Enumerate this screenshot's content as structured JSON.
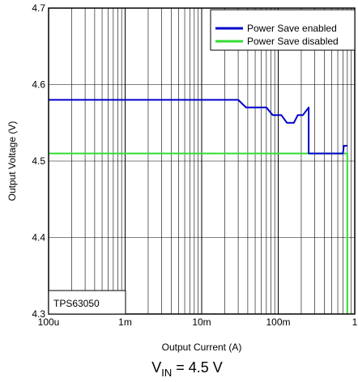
{
  "chart_data": {
    "type": "line",
    "xscale": "log",
    "xlabel": "Output Current (A)",
    "ylabel": "Output Voltage (V)",
    "xlim": [
      0.0001,
      1
    ],
    "ylim": [
      4.3,
      4.7
    ],
    "xticks": [
      {
        "value": 0.0001,
        "label": "100u"
      },
      {
        "value": 0.001,
        "label": "1m"
      },
      {
        "value": 0.01,
        "label": "10m"
      },
      {
        "value": 0.1,
        "label": "100m"
      },
      {
        "value": 1,
        "label": "1"
      }
    ],
    "yticks": [
      {
        "value": 4.3,
        "label": "4.3"
      },
      {
        "value": 4.4,
        "label": "4.4"
      },
      {
        "value": 4.5,
        "label": "4.5"
      },
      {
        "value": 4.6,
        "label": "4.6"
      },
      {
        "value": 4.7,
        "label": "4.7"
      }
    ],
    "grid": true,
    "legend_position": "top-right",
    "series": [
      {
        "name": "Power Save enabled",
        "color": "#0000cc",
        "points": [
          [
            0.0001,
            4.58
          ],
          [
            0.03,
            4.58
          ],
          [
            0.038,
            4.57
          ],
          [
            0.07,
            4.57
          ],
          [
            0.085,
            4.56
          ],
          [
            0.11,
            4.56
          ],
          [
            0.13,
            4.55
          ],
          [
            0.16,
            4.55
          ],
          [
            0.18,
            4.56
          ],
          [
            0.21,
            4.56
          ],
          [
            0.25,
            4.57
          ],
          [
            0.25,
            4.51
          ],
          [
            0.7,
            4.51
          ],
          [
            0.72,
            4.52
          ],
          [
            0.8,
            4.52
          ]
        ]
      },
      {
        "name": "Power Save disabled",
        "color": "#33dd33",
        "points": [
          [
            0.0001,
            4.51
          ],
          [
            0.8,
            4.51
          ],
          [
            0.8,
            4.3
          ]
        ]
      }
    ],
    "annotation": "TPS63050"
  },
  "caption": {
    "prefix": "V",
    "subscript": "IN",
    "suffix": " = 4.5 V"
  }
}
